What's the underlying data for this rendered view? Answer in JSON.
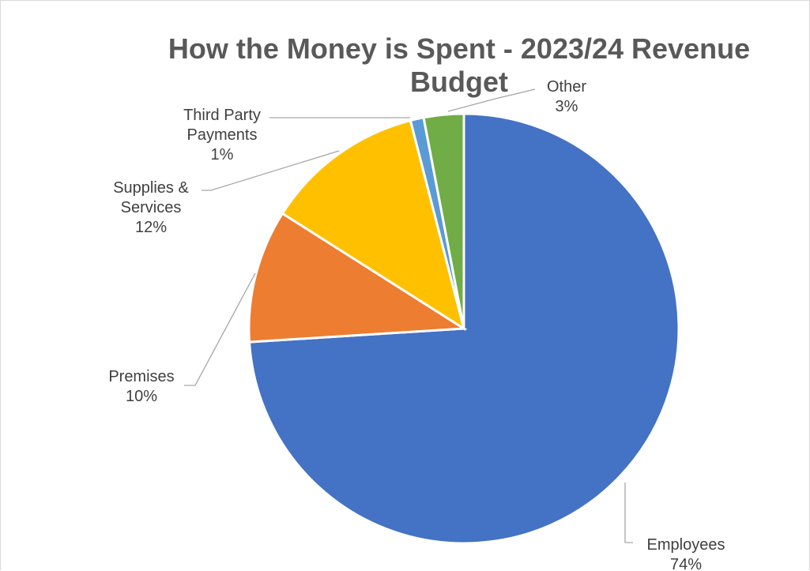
{
  "chart_data": {
    "type": "pie",
    "title": "How the Money is Spent - 2023/24 Revenue Budget",
    "slices": [
      {
        "label": "Employees",
        "pct_label": "74%",
        "value": 74,
        "color": "#4472c4"
      },
      {
        "label": "Premises",
        "pct_label": "10%",
        "value": 10,
        "color": "#ed7d31"
      },
      {
        "label": "Supplies & Services",
        "pct_label": "12%",
        "value": 12,
        "color": "#ffc000"
      },
      {
        "label": "Third Party Payments",
        "pct_label": "1%",
        "value": 1,
        "color": "#5b9bd5"
      },
      {
        "label": "Other",
        "pct_label": "3%",
        "value": 3,
        "color": "#70ad47"
      }
    ],
    "legend": "none",
    "data_labels": "outside-with-leader-lines"
  }
}
